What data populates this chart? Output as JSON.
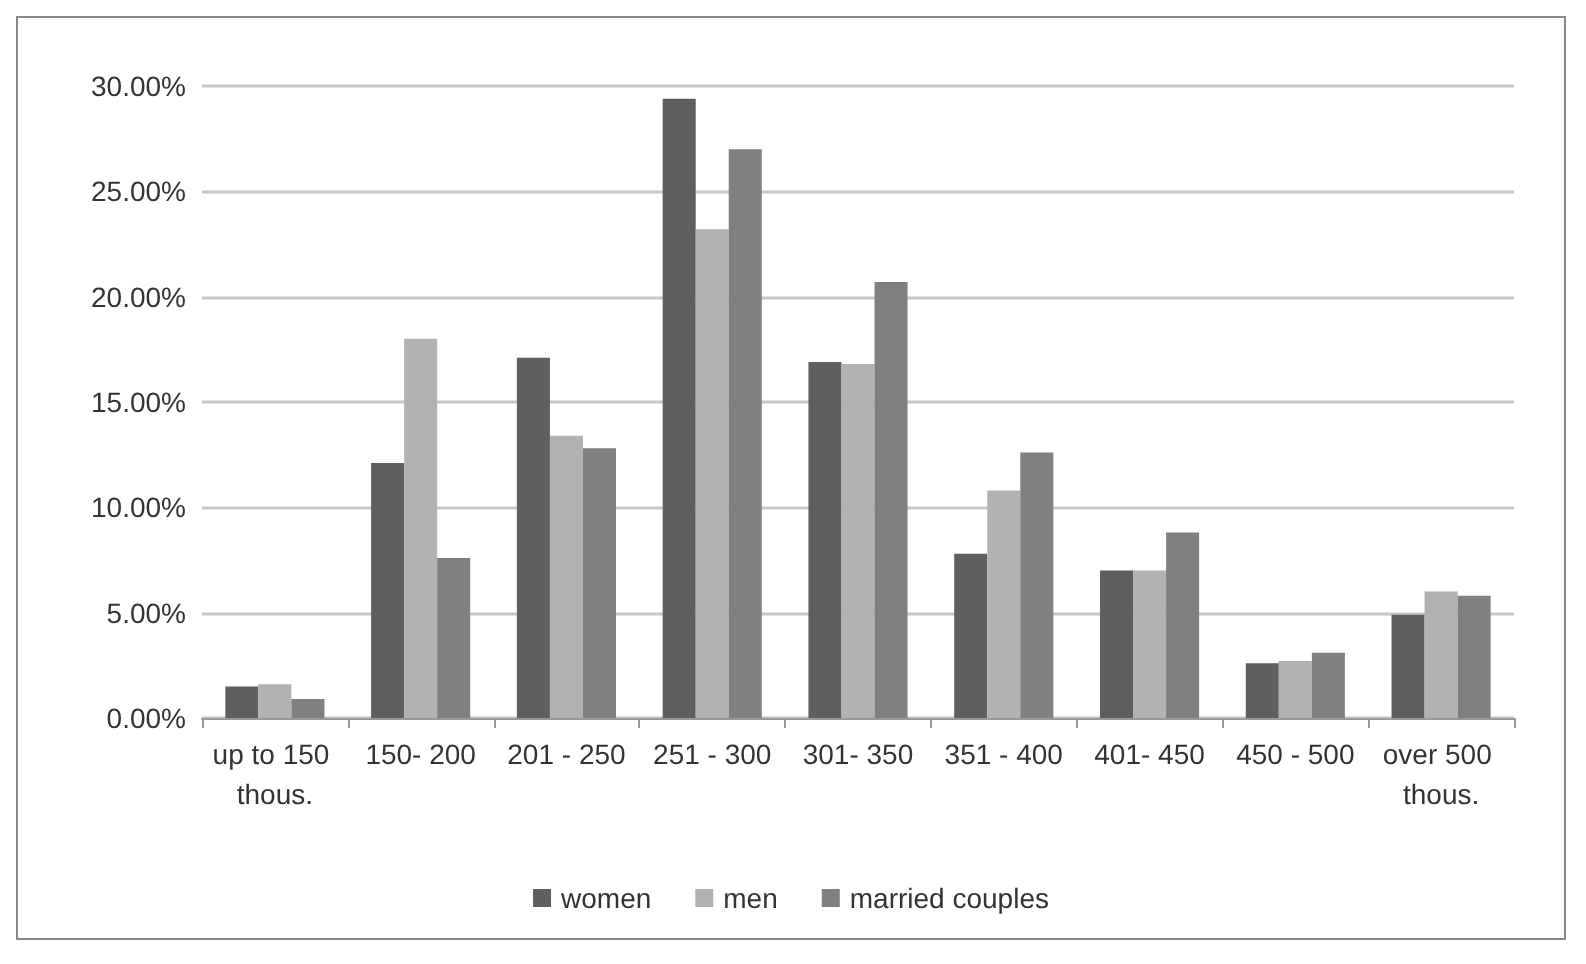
{
  "chart_data": {
    "type": "bar",
    "categories": [
      "up to 150 thous.",
      "150- 200",
      "201 - 250",
      "251 - 300",
      "301- 350",
      "351 - 400",
      "401- 450",
      "450 - 500",
      "over 500 thous."
    ],
    "series": [
      {
        "name": "women",
        "color": "#5f5f5f",
        "values": [
          1.5,
          12.1,
          17.1,
          29.4,
          16.9,
          7.8,
          7.0,
          2.6,
          4.9
        ]
      },
      {
        "name": "men",
        "color": "#b2b2b2",
        "values": [
          1.6,
          18.0,
          13.4,
          23.2,
          16.8,
          10.8,
          7.0,
          2.7,
          6.0
        ]
      },
      {
        "name": "married couples",
        "color": "#808080",
        "values": [
          0.9,
          7.6,
          12.8,
          27.0,
          20.7,
          12.6,
          8.8,
          3.1,
          5.8
        ]
      }
    ],
    "ylim": [
      0,
      30
    ],
    "yticks": [
      {
        "value": 0,
        "label": "0.00%"
      },
      {
        "value": 5,
        "label": "5.00%"
      },
      {
        "value": 10,
        "label": "10.00%"
      },
      {
        "value": 15,
        "label": "15.00%"
      },
      {
        "value": 20,
        "label": "20.00%"
      },
      {
        "value": 25,
        "label": "25.00%"
      },
      {
        "value": 30,
        "label": "30.00%"
      }
    ],
    "grid": "y",
    "legend": "bottom"
  }
}
